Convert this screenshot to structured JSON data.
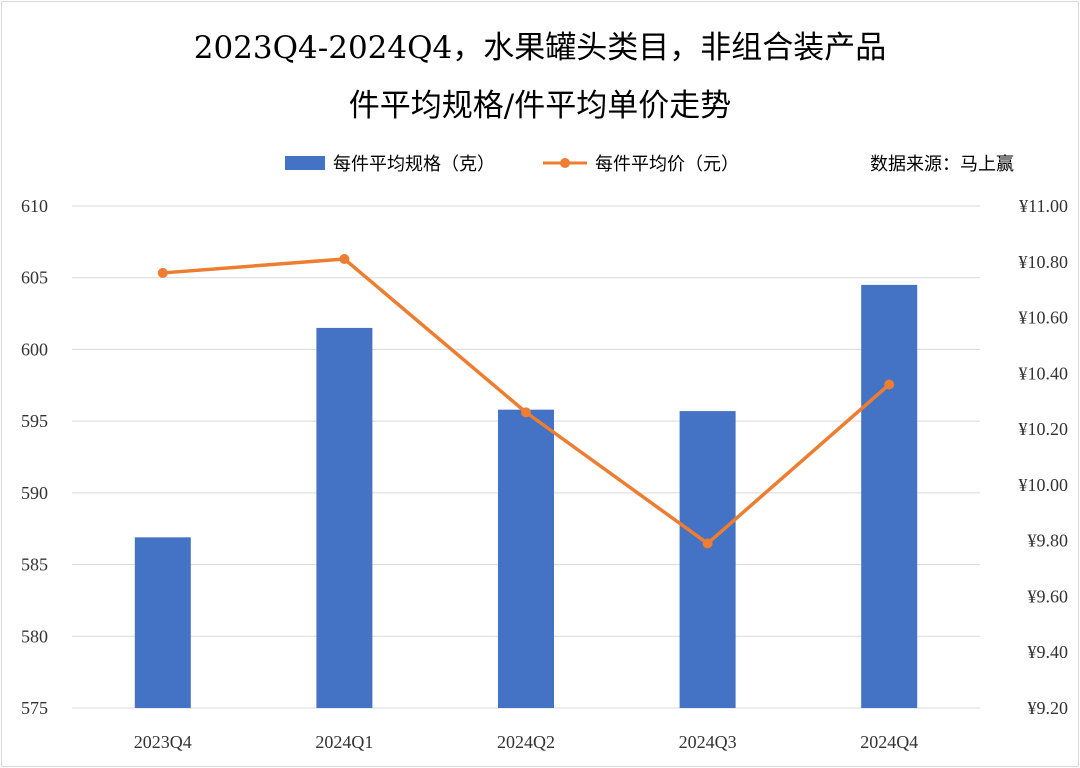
{
  "chart_data": {
    "type": "bar+line",
    "title_line1": "2023Q4-2024Q4，水果罐头类目，非组合装产品",
    "title_line2": "件平均规格/件平均单价走势",
    "source": "数据来源：马上赢",
    "categories": [
      "2023Q4",
      "2024Q1",
      "2024Q2",
      "2024Q3",
      "2024Q4"
    ],
    "series": [
      {
        "name": "每件平均规格（克）",
        "type": "bar",
        "axis": "left",
        "color": "#4472C4",
        "values": [
          586.9,
          601.5,
          595.8,
          595.7,
          604.5
        ]
      },
      {
        "name": "每件平均价（元）",
        "type": "line",
        "axis": "right",
        "color": "#ED7D31",
        "values": [
          10.76,
          10.81,
          10.26,
          9.79,
          10.36
        ]
      }
    ],
    "left_axis": {
      "min": 575,
      "max": 610,
      "step": 5,
      "ticks": [
        "575",
        "580",
        "585",
        "590",
        "595",
        "600",
        "605",
        "610"
      ]
    },
    "right_axis": {
      "min": 9.2,
      "max": 11.0,
      "step": 0.2,
      "ticks": [
        "¥9.20",
        "¥9.40",
        "¥9.60",
        "¥9.80",
        "¥10.00",
        "¥10.20",
        "¥10.40",
        "¥10.60",
        "¥10.80",
        "¥11.00"
      ]
    },
    "grid": true,
    "legend_position": "top"
  }
}
